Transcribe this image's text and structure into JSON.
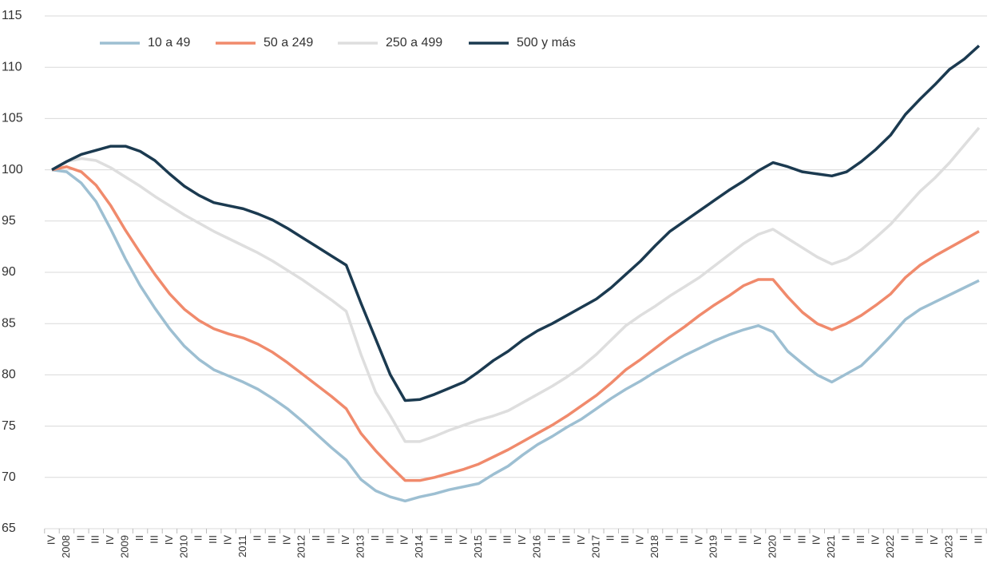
{
  "chart_data": {
    "type": "line",
    "categories": [
      "IV",
      "2008",
      "II",
      "III",
      "IV",
      "2009",
      "II",
      "III",
      "IV",
      "2010",
      "II",
      "III",
      "IV",
      "2011",
      "II",
      "III",
      "IV",
      "2012",
      "II",
      "III",
      "IV",
      "2013",
      "II",
      "III",
      "IV",
      "2014",
      "II",
      "III",
      "IV",
      "2015",
      "II",
      "III",
      "IV",
      "2016",
      "II",
      "III",
      "IV",
      "2017",
      "II",
      "III",
      "IV",
      "2018",
      "II",
      "III",
      "IV",
      "2019",
      "II",
      "III",
      "IV",
      "2020",
      "II",
      "III",
      "IV",
      "2021",
      "II",
      "III",
      "IV",
      "2022",
      "II",
      "III",
      "IV",
      "2023",
      "II",
      "III"
    ],
    "series": [
      {
        "name": "10 a 49",
        "color": "#9dbfd2",
        "values": [
          100,
          99.8,
          98.7,
          96.9,
          94.2,
          91.3,
          88.7,
          86.5,
          84.5,
          82.8,
          81.5,
          80.5,
          79.9,
          79.3,
          78.6,
          77.7,
          76.7,
          75.5,
          74.2,
          72.9,
          71.7,
          69.8,
          68.7,
          68.1,
          67.7,
          68.1,
          68.4,
          68.8,
          69.1,
          69.4,
          70.3,
          71.1,
          72.2,
          73.2,
          74,
          74.9,
          75.7,
          76.7,
          77.7,
          78.6,
          79.4,
          80.3,
          81.1,
          81.9,
          82.6,
          83.3,
          83.9,
          84.4,
          84.8,
          84.2,
          82.3,
          81.1,
          80,
          79.3,
          80.1,
          80.9,
          82.3,
          83.8,
          85.4,
          86.4,
          87.1,
          87.8,
          88.5,
          89.2
        ]
      },
      {
        "name": "50 a 249",
        "color": "#f08a6c",
        "values": [
          100,
          100.3,
          99.8,
          98.5,
          96.5,
          94.1,
          91.9,
          89.8,
          87.9,
          86.4,
          85.3,
          84.5,
          84,
          83.6,
          83,
          82.2,
          81.2,
          80.1,
          79,
          77.9,
          76.7,
          74.3,
          72.6,
          71.1,
          69.7,
          69.7,
          70,
          70.4,
          70.8,
          71.3,
          72,
          72.7,
          73.5,
          74.3,
          75.1,
          76,
          77,
          78,
          79.2,
          80.5,
          81.5,
          82.6,
          83.7,
          84.7,
          85.8,
          86.8,
          87.7,
          88.7,
          89.3,
          89.3,
          87.6,
          86.1,
          85,
          84.4,
          85,
          85.8,
          86.8,
          87.9,
          89.5,
          90.7,
          91.6,
          92.4,
          93.2,
          94
        ]
      },
      {
        "name": "250 a 499",
        "color": "#dedede",
        "values": [
          100,
          100.8,
          101.1,
          100.9,
          100.2,
          99.3,
          98.4,
          97.4,
          96.5,
          95.6,
          94.8,
          94,
          93.3,
          92.6,
          91.9,
          91.1,
          90.2,
          89.3,
          88.3,
          87.3,
          86.2,
          82,
          78.3,
          76,
          73.5,
          73.5,
          74,
          74.6,
          75.1,
          75.6,
          76,
          76.5,
          77.3,
          78.1,
          78.9,
          79.8,
          80.8,
          82,
          83.4,
          84.8,
          85.8,
          86.7,
          87.7,
          88.6,
          89.5,
          90.6,
          91.7,
          92.8,
          93.7,
          94.2,
          93.3,
          92.4,
          91.5,
          90.8,
          91.3,
          92.2,
          93.4,
          94.7,
          96.3,
          97.9,
          99.2,
          100.7,
          102.4,
          104.1
        ]
      },
      {
        "name": "500 y más",
        "color": "#1b3a50",
        "values": [
          100,
          100.8,
          101.5,
          101.9,
          102.3,
          102.3,
          101.8,
          100.9,
          99.6,
          98.4,
          97.5,
          96.8,
          96.5,
          96.2,
          95.7,
          95.1,
          94.3,
          93.4,
          92.5,
          91.6,
          90.7,
          87,
          83.5,
          80,
          77.5,
          77.6,
          78.1,
          78.7,
          79.3,
          80.3,
          81.4,
          82.3,
          83.4,
          84.3,
          85,
          85.8,
          86.6,
          87.4,
          88.5,
          89.8,
          91.1,
          92.6,
          94,
          95,
          96,
          97,
          98,
          98.9,
          99.9,
          100.7,
          100.3,
          99.8,
          99.6,
          99.4,
          99.8,
          100.8,
          102,
          103.4,
          105.4,
          106.9,
          108.3,
          109.8,
          110.8,
          112.1
        ]
      }
    ],
    "ylim": [
      65,
      115
    ],
    "yticks": [
      65,
      70,
      75,
      80,
      85,
      90,
      95,
      100,
      105,
      110,
      115
    ],
    "grid": true,
    "legend": "top-left"
  }
}
